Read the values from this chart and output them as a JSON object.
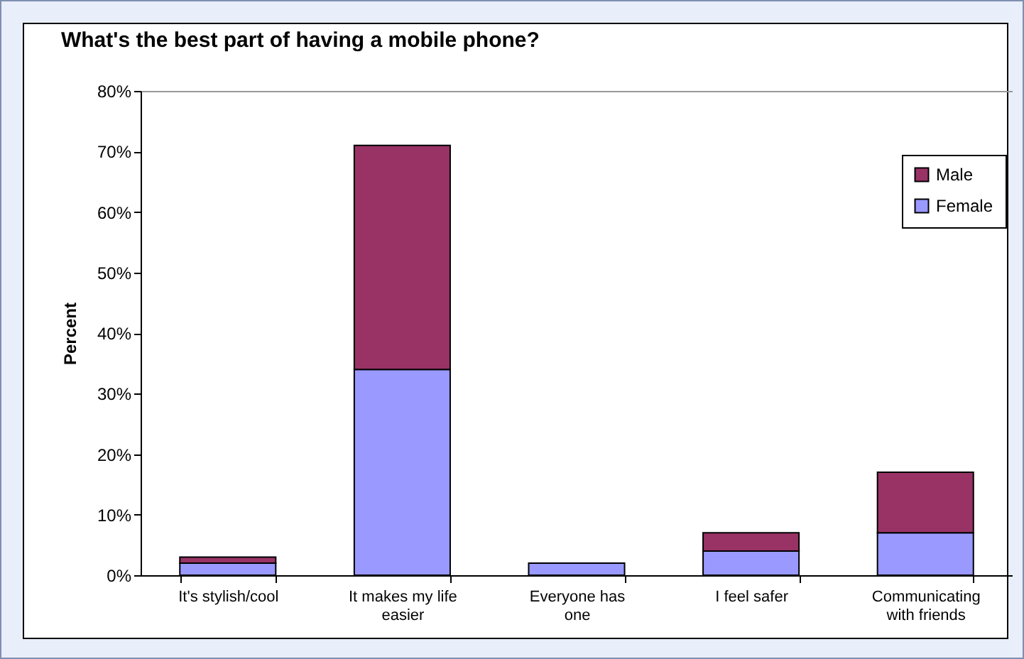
{
  "chart_data": {
    "type": "bar",
    "title": "What's the best part of having a mobile phone?",
    "ylabel": "Percent",
    "categories": [
      "It's stylish/cool",
      "It makes my life easier",
      "Everyone has one",
      "I feel safer",
      "Communicating with friends"
    ],
    "series": [
      {
        "name": "Female",
        "color": "#9999ff",
        "values": [
          2,
          34,
          2,
          4,
          7
        ]
      },
      {
        "name": "Male",
        "color": "#993366",
        "values": [
          1,
          37,
          0,
          3,
          10
        ]
      }
    ],
    "stacked": true,
    "ylim": [
      0,
      80
    ],
    "yticks": [
      {
        "value": 0,
        "label": "0%"
      },
      {
        "value": 10,
        "label": "10%"
      },
      {
        "value": 20,
        "label": "20%"
      },
      {
        "value": 30,
        "label": "30%"
      },
      {
        "value": 40,
        "label": "40%"
      },
      {
        "value": 50,
        "label": "50%"
      },
      {
        "value": 60,
        "label": "60%"
      },
      {
        "value": 70,
        "label": "70%"
      },
      {
        "value": 80,
        "label": "80%"
      }
    ],
    "grid": false,
    "legend": "top right"
  }
}
